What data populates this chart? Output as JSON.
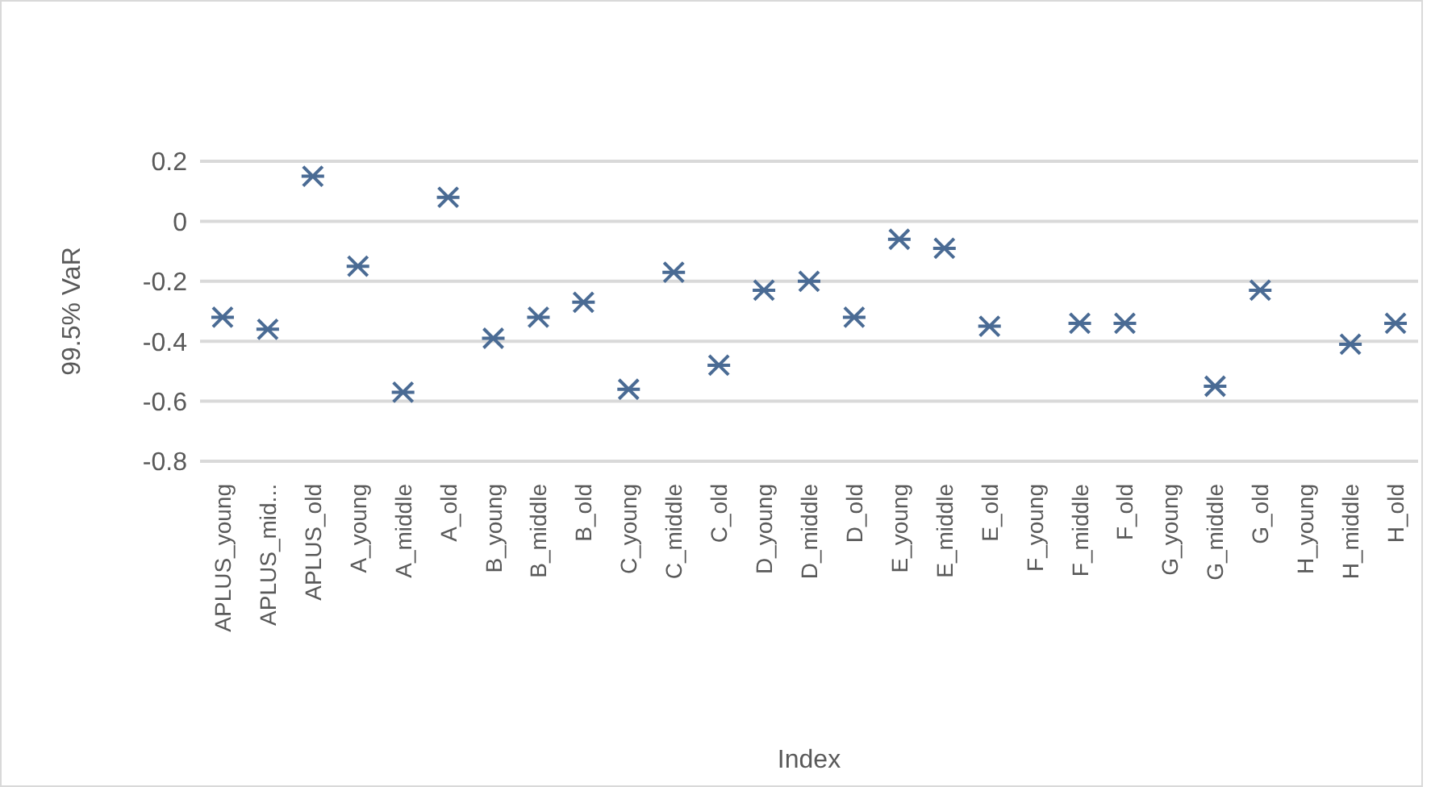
{
  "chart_data": {
    "type": "scatter",
    "xlabel": "Index",
    "ylabel": "99.5% VaR",
    "categories": [
      "APLUS_young",
      "APLUS_mid...",
      "APLUS_old",
      "A_young",
      "A_middle",
      "A_old",
      "B_young",
      "B_middle",
      "B_old",
      "C_young",
      "C_middle",
      "C_old",
      "D_young",
      "D_middle",
      "D_old",
      "E_young",
      "E_middle",
      "E_old",
      "F_young",
      "F_middle",
      "F_old",
      "G_young",
      "G_middle",
      "G_old",
      "H_young",
      "H_middle",
      "H_old"
    ],
    "values": [
      -0.32,
      -0.36,
      0.15,
      -0.15,
      -0.57,
      0.08,
      -0.39,
      -0.32,
      -0.27,
      -0.56,
      -0.17,
      -0.48,
      -0.23,
      -0.2,
      -0.32,
      -0.06,
      -0.09,
      -0.35,
      null,
      -0.34,
      -0.34,
      null,
      -0.55,
      -0.23,
      null,
      -0.41,
      -0.34
    ],
    "color": "#4a6b94",
    "marker": "cross",
    "grid": "y",
    "ylim": [
      -0.8,
      0.2
    ],
    "yticks": [
      {
        "value": 0.2,
        "label": "0.2"
      },
      0,
      {
        "value": -0.2,
        "label": "-0.2"
      },
      {
        "value": -0.4,
        "label": "-0.4"
      },
      {
        "value": -0.6,
        "label": "-0.6"
      },
      {
        "value": -0.8,
        "label": "-0.8"
      }
    ]
  }
}
